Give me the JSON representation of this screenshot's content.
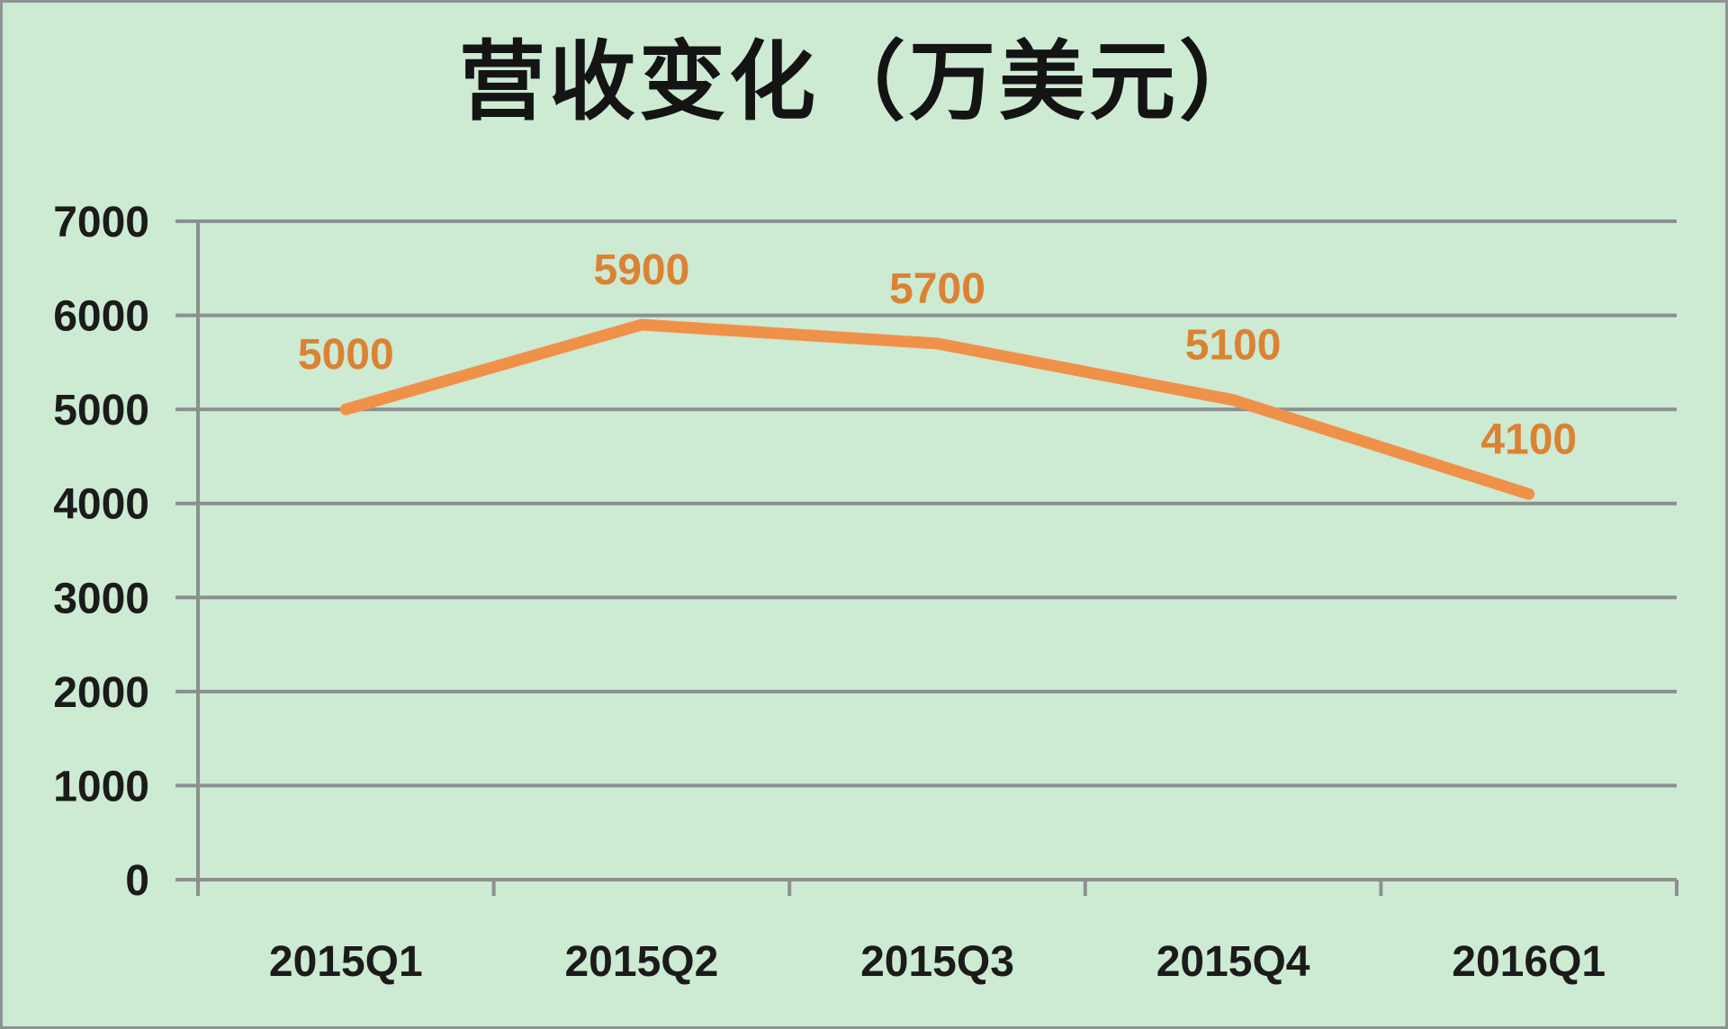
{
  "window": {
    "background": "#CDEAD2",
    "border_color": "#8E9394"
  },
  "chart_data": {
    "type": "line",
    "title": "营收变化（万美元）",
    "categories": [
      "2015Q1",
      "2015Q2",
      "2015Q3",
      "2015Q4",
      "2016Q1"
    ],
    "values": [
      5000,
      5900,
      5700,
      5100,
      4100
    ],
    "data_labels": [
      "5000",
      "5900",
      "5700",
      "5100",
      "4100"
    ],
    "xlabel": "",
    "ylabel": "",
    "ylim": [
      0,
      7000
    ],
    "ytick_step": 1000,
    "ytick_labels": [
      "0",
      "1000",
      "2000",
      "3000",
      "4000",
      "5000",
      "6000",
      "7000"
    ],
    "grid": true,
    "legend": "none",
    "colors": {
      "series_line": "#F0914A",
      "data_label": "#DB8233",
      "gridline": "#8A9090",
      "axis_line": "#8A9090",
      "axis_text": "#1B1B1B",
      "title_text": "#141414"
    }
  }
}
